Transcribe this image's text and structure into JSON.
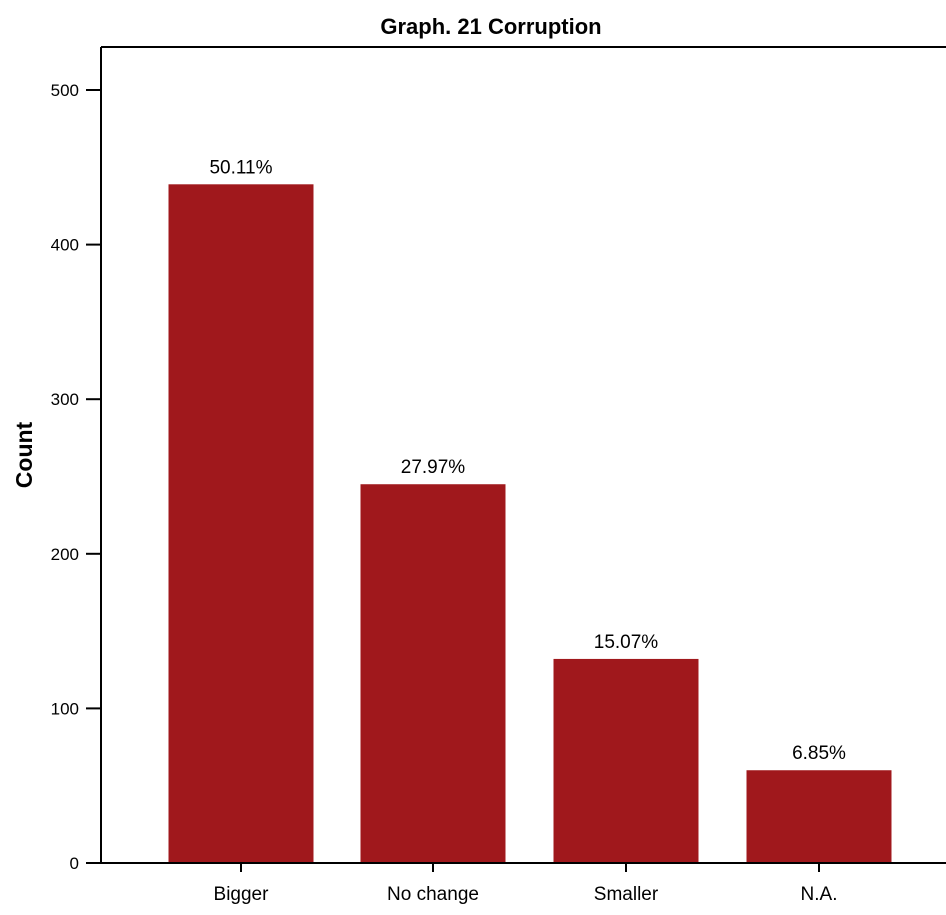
{
  "chart_data": {
    "type": "bar",
    "title": "Graph. 21  Corruption",
    "xlabel": "",
    "ylabel": "Count",
    "categories": [
      "Bigger",
      "No change",
      "Smaller",
      "N.A."
    ],
    "values": [
      439,
      245,
      132,
      60
    ],
    "data_labels": [
      "50.11%",
      "27.97%",
      "15.07%",
      "6.85%"
    ],
    "ylim": [
      0,
      500
    ],
    "yticks": [
      0,
      100,
      200,
      300,
      400,
      500
    ],
    "grid": false,
    "legend": "none",
    "bar_color": "#a0181c"
  }
}
